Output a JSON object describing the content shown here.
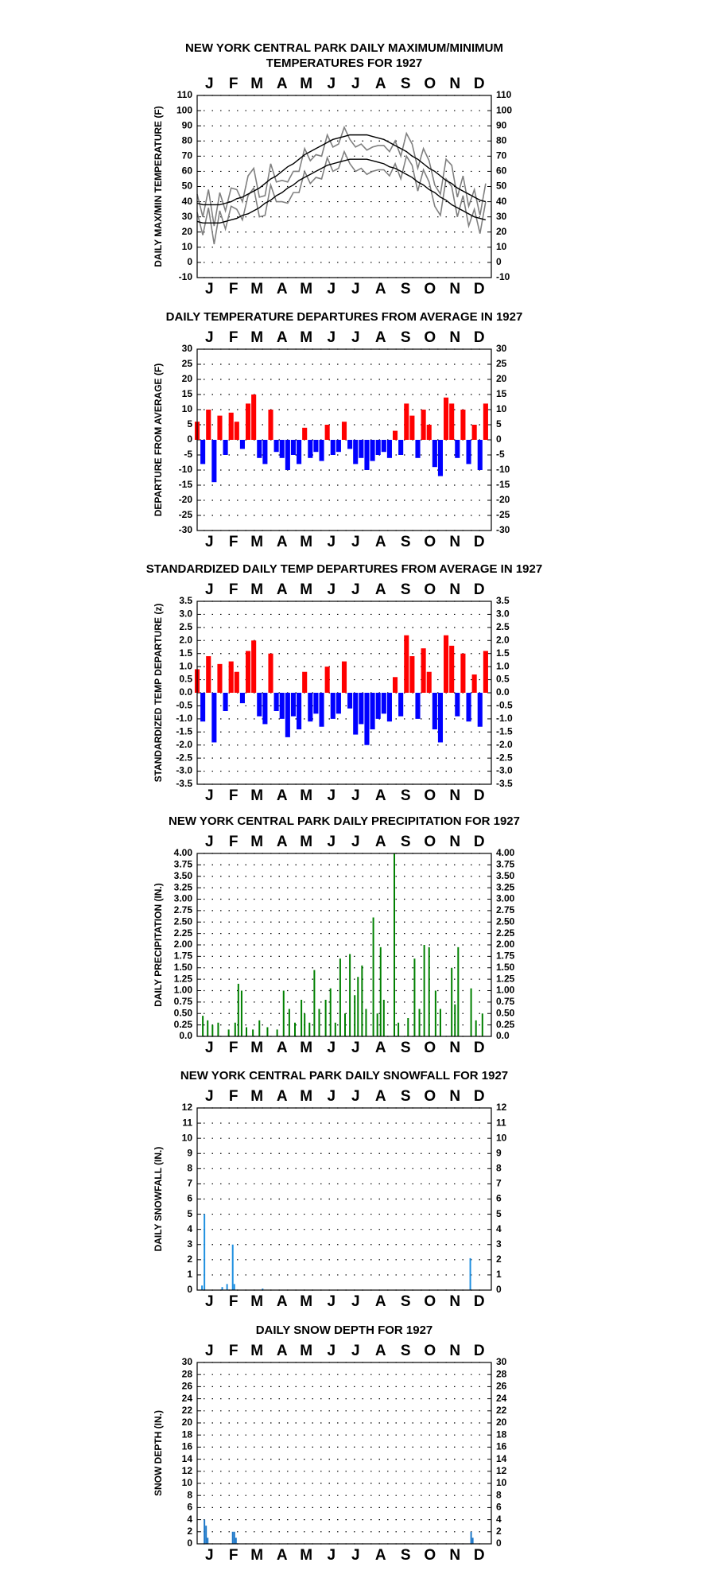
{
  "chart_data": [
    {
      "type": "line",
      "title": [
        "NEW YORK CENTRAL PARK DAILY MAXIMUM/MINIMUM",
        "TEMPERATURES FOR 1927"
      ],
      "y_label": "DAILY MAX/MIN TEMPERATURE (F)",
      "xlim": [
        1,
        365
      ],
      "xticks": [
        {
          "value": 16,
          "label": "J"
        },
        {
          "value": 46,
          "label": "F"
        },
        {
          "value": 75,
          "label": "M"
        },
        {
          "value": 106,
          "label": "A"
        },
        {
          "value": 136,
          "label": "M"
        },
        {
          "value": 167,
          "label": "J"
        },
        {
          "value": 197,
          "label": "J"
        },
        {
          "value": 228,
          "label": "A"
        },
        {
          "value": 259,
          "label": "S"
        },
        {
          "value": 289,
          "label": "O"
        },
        {
          "value": 320,
          "label": "N"
        },
        {
          "value": 350,
          "label": "D"
        }
      ],
      "ylim": [
        -10,
        110
      ],
      "yticks": [
        -10,
        0,
        10,
        20,
        30,
        40,
        50,
        60,
        70,
        80,
        90,
        100,
        110
      ],
      "grid": true,
      "x": [
        1,
        8,
        15,
        22,
        29,
        36,
        43,
        50,
        57,
        64,
        71,
        78,
        85,
        92,
        99,
        106,
        113,
        120,
        127,
        134,
        141,
        148,
        155,
        162,
        169,
        176,
        183,
        190,
        197,
        204,
        211,
        218,
        225,
        232,
        239,
        246,
        253,
        260,
        267,
        274,
        281,
        288,
        295,
        302,
        309,
        316,
        323,
        330,
        337,
        344,
        351,
        358
      ],
      "series": [
        {
          "color": "#808080",
          "values": [
            45,
            30,
            48,
            24,
            46,
            34,
            49,
            48,
            40,
            57,
            62,
            43,
            44,
            65,
            53,
            54,
            53,
            60,
            60,
            75,
            67,
            71,
            70,
            84,
            76,
            78,
            89,
            81,
            76,
            78,
            74,
            76,
            77,
            77,
            73,
            80,
            70,
            85,
            78,
            62,
            75,
            67,
            51,
            45,
            68,
            64,
            43,
            57,
            37,
            48,
            31,
            52
          ]
        },
        {
          "color": "#808080",
          "values": [
            33,
            18,
            36,
            12,
            34,
            22,
            37,
            35,
            28,
            44,
            49,
            30,
            31,
            51,
            40,
            40,
            39,
            46,
            46,
            60,
            52,
            56,
            55,
            69,
            60,
            62,
            73,
            65,
            60,
            62,
            58,
            60,
            61,
            61,
            57,
            65,
            55,
            70,
            64,
            47,
            61,
            53,
            37,
            31,
            55,
            50,
            30,
            44,
            24,
            35,
            19,
            40
          ]
        },
        {
          "color": "#000000",
          "values": [
            39,
            38,
            38,
            38,
            38,
            39,
            40,
            42,
            43,
            45,
            47,
            49,
            52,
            55,
            57,
            60,
            63,
            65,
            68,
            71,
            73,
            75,
            77,
            79,
            81,
            82,
            83,
            84,
            84,
            84,
            84,
            83,
            82,
            81,
            79,
            77,
            75,
            73,
            70,
            68,
            65,
            62,
            60,
            57,
            54,
            52,
            49,
            47,
            45,
            43,
            41,
            40
          ]
        },
        {
          "color": "#000000",
          "values": [
            27,
            26,
            26,
            26,
            26,
            27,
            28,
            29,
            31,
            32,
            34,
            36,
            39,
            41,
            44,
            46,
            49,
            51,
            54,
            56,
            58,
            60,
            62,
            64,
            65,
            66,
            67,
            68,
            68,
            68,
            68,
            67,
            66,
            65,
            63,
            62,
            60,
            58,
            56,
            53,
            51,
            48,
            46,
            43,
            41,
            38,
            36,
            34,
            32,
            30,
            29,
            28
          ]
        }
      ]
    },
    {
      "type": "bar",
      "title": [
        "DAILY TEMPERATURE DEPARTURES FROM AVERAGE IN 1927"
      ],
      "y_label": "DEPARTURE FROM AVERAGE (F)",
      "xlim": [
        1,
        365
      ],
      "xticks": [
        {
          "value": 16,
          "label": "J"
        },
        {
          "value": 46,
          "label": "F"
        },
        {
          "value": 75,
          "label": "M"
        },
        {
          "value": 106,
          "label": "A"
        },
        {
          "value": 136,
          "label": "M"
        },
        {
          "value": 167,
          "label": "J"
        },
        {
          "value": 197,
          "label": "J"
        },
        {
          "value": 228,
          "label": "A"
        },
        {
          "value": 259,
          "label": "S"
        },
        {
          "value": 289,
          "label": "O"
        },
        {
          "value": 320,
          "label": "N"
        },
        {
          "value": 350,
          "label": "D"
        }
      ],
      "ylim": [
        -30,
        30
      ],
      "yticks": [
        -30,
        -25,
        -20,
        -15,
        -10,
        -5,
        0,
        5,
        10,
        15,
        20,
        25,
        30
      ],
      "grid": true,
      "color_above": "#ff0000",
      "color_below": "#0000ff",
      "x": [
        1,
        8,
        15,
        22,
        29,
        36,
        43,
        50,
        57,
        64,
        71,
        78,
        85,
        92,
        99,
        106,
        113,
        120,
        127,
        134,
        141,
        148,
        155,
        162,
        169,
        176,
        183,
        190,
        197,
        204,
        211,
        218,
        225,
        232,
        239,
        246,
        253,
        260,
        267,
        274,
        281,
        288,
        295,
        302,
        309,
        316,
        323,
        330,
        337,
        344,
        351,
        358
      ],
      "values": [
        6,
        -8,
        10,
        -14,
        8,
        -5,
        9,
        6,
        -3,
        12,
        15,
        -6,
        -8,
        10,
        -4,
        -6,
        -10,
        -5,
        -8,
        4,
        -6,
        -4,
        -7,
        5,
        -5,
        -4,
        6,
        -3,
        -8,
        -6,
        -10,
        -7,
        -5,
        -4,
        -6,
        3,
        -5,
        12,
        8,
        -6,
        10,
        5,
        -9,
        -12,
        14,
        12,
        -6,
        10,
        -8,
        5,
        -10,
        12
      ]
    },
    {
      "type": "bar",
      "title": [
        "STANDARDIZED DAILY TEMP DEPARTURES FROM AVERAGE IN 1927"
      ],
      "y_label": "STANDARDIZED TEMP DEPARTURE (z)",
      "xlim": [
        1,
        365
      ],
      "xticks": [
        {
          "value": 16,
          "label": "J"
        },
        {
          "value": 46,
          "label": "F"
        },
        {
          "value": 75,
          "label": "M"
        },
        {
          "value": 106,
          "label": "A"
        },
        {
          "value": 136,
          "label": "M"
        },
        {
          "value": 167,
          "label": "J"
        },
        {
          "value": 197,
          "label": "J"
        },
        {
          "value": 228,
          "label": "A"
        },
        {
          "value": 259,
          "label": "S"
        },
        {
          "value": 289,
          "label": "O"
        },
        {
          "value": 320,
          "label": "N"
        },
        {
          "value": 350,
          "label": "D"
        }
      ],
      "ylim": [
        -3.5,
        3.5
      ],
      "yticks": [
        -3.5,
        {
          "value": -3,
          "label": "-3.0"
        },
        -2.5,
        {
          "value": -2,
          "label": "-2.0"
        },
        -1.5,
        {
          "value": -1,
          "label": "-1.0"
        },
        -0.5,
        {
          "value": 0,
          "label": "0.0"
        },
        0.5,
        {
          "value": 1,
          "label": "1.0"
        },
        1.5,
        {
          "value": 2,
          "label": "2.0"
        },
        2.5,
        {
          "value": 3,
          "label": "3.0"
        },
        3.5
      ],
      "grid": true,
      "color_above": "#ff0000",
      "color_below": "#0000ff",
      "x": [
        1,
        8,
        15,
        22,
        29,
        36,
        43,
        50,
        57,
        64,
        71,
        78,
        85,
        92,
        99,
        106,
        113,
        120,
        127,
        134,
        141,
        148,
        155,
        162,
        169,
        176,
        183,
        190,
        197,
        204,
        211,
        218,
        225,
        232,
        239,
        246,
        253,
        260,
        267,
        274,
        281,
        288,
        295,
        302,
        309,
        316,
        323,
        330,
        337,
        344,
        351,
        358
      ],
      "values": [
        0.9,
        -1.1,
        1.4,
        -1.9,
        1.1,
        -0.7,
        1.2,
        0.8,
        -0.4,
        1.6,
        2.0,
        -0.9,
        -1.2,
        1.5,
        -0.7,
        -1.0,
        -1.7,
        -0.9,
        -1.4,
        0.8,
        -1.1,
        -0.8,
        -1.3,
        1.0,
        -1.0,
        -0.8,
        1.2,
        -0.6,
        -1.6,
        -1.2,
        -2.0,
        -1.4,
        -1.0,
        -0.8,
        -1.1,
        0.6,
        -0.9,
        2.2,
        1.4,
        -1.0,
        1.7,
        0.8,
        -1.4,
        -1.9,
        2.2,
        1.8,
        -0.9,
        1.5,
        -1.1,
        0.7,
        -1.3,
        1.6
      ]
    },
    {
      "type": "bar",
      "title": [
        "NEW YORK CENTRAL PARK DAILY PRECIPITATION FOR 1927"
      ],
      "y_label": "DAILY PRECIPITATION (IN.)",
      "xlim": [
        1,
        365
      ],
      "xticks": [
        {
          "value": 16,
          "label": "J"
        },
        {
          "value": 46,
          "label": "F"
        },
        {
          "value": 75,
          "label": "M"
        },
        {
          "value": 106,
          "label": "A"
        },
        {
          "value": 136,
          "label": "M"
        },
        {
          "value": 167,
          "label": "J"
        },
        {
          "value": 197,
          "label": "J"
        },
        {
          "value": 228,
          "label": "A"
        },
        {
          "value": 259,
          "label": "S"
        },
        {
          "value": 289,
          "label": "O"
        },
        {
          "value": 320,
          "label": "N"
        },
        {
          "value": 350,
          "label": "D"
        }
      ],
      "ylim": [
        0,
        4
      ],
      "yticks": [
        {
          "value": 0,
          "label": "0.0"
        },
        0.25,
        {
          "value": 0.5,
          "label": "0.50"
        },
        0.75,
        {
          "value": 1,
          "label": "1.00"
        },
        1.25,
        {
          "value": 1.5,
          "label": "1.50"
        },
        1.75,
        {
          "value": 2,
          "label": "2.00"
        },
        2.25,
        {
          "value": 2.5,
          "label": "2.50"
        },
        2.75,
        {
          "value": 3,
          "label": "3.00"
        },
        3.25,
        {
          "value": 3.5,
          "label": "3.50"
        },
        3.75,
        {
          "value": 4,
          "label": "4.00"
        }
      ],
      "grid": true,
      "color": "#008000",
      "x": [
        8,
        14,
        20,
        27,
        40,
        48,
        52,
        56,
        62,
        70,
        78,
        88,
        100,
        108,
        115,
        122,
        130,
        134,
        140,
        146,
        152,
        160,
        166,
        172,
        178,
        184,
        190,
        196,
        200,
        205,
        210,
        219,
        224,
        228,
        232,
        245,
        250,
        262,
        270,
        276,
        282,
        288,
        296,
        302,
        316,
        320,
        324,
        340,
        346,
        354
      ],
      "values": [
        0.45,
        0.35,
        0.25,
        0.3,
        0.15,
        0.3,
        1.15,
        1.0,
        0.2,
        0.15,
        0.35,
        0.2,
        0.15,
        1.0,
        0.6,
        0.3,
        0.8,
        0.5,
        0.3,
        1.45,
        0.6,
        0.8,
        1.05,
        0.3,
        1.7,
        0.5,
        1.8,
        0.9,
        1.3,
        1.55,
        0.6,
        2.6,
        0.5,
        1.95,
        0.8,
        4.0,
        0.3,
        0.4,
        1.7,
        0.6,
        2.0,
        1.95,
        1.0,
        0.6,
        1.5,
        0.7,
        1.95,
        1.05,
        0.35,
        0.5
      ]
    },
    {
      "type": "bar",
      "title": [
        "NEW YORK CENTRAL PARK DAILY SNOWFALL FOR 1927"
      ],
      "y_label": "DAILY SNOWFALL (IN.)",
      "xlim": [
        1,
        365
      ],
      "xticks": [
        {
          "value": 16,
          "label": "J"
        },
        {
          "value": 46,
          "label": "F"
        },
        {
          "value": 75,
          "label": "M"
        },
        {
          "value": 106,
          "label": "A"
        },
        {
          "value": 136,
          "label": "M"
        },
        {
          "value": 167,
          "label": "J"
        },
        {
          "value": 197,
          "label": "J"
        },
        {
          "value": 228,
          "label": "A"
        },
        {
          "value": 259,
          "label": "S"
        },
        {
          "value": 289,
          "label": "O"
        },
        {
          "value": 320,
          "label": "N"
        },
        {
          "value": 350,
          "label": "D"
        }
      ],
      "ylim": [
        0,
        12
      ],
      "yticks": [
        0,
        1,
        2,
        3,
        4,
        5,
        6,
        7,
        8,
        9,
        10,
        11,
        12
      ],
      "grid": true,
      "color": "#1e8fe0",
      "x": [
        7,
        10,
        32,
        38,
        45,
        47,
        82,
        339
      ],
      "values": [
        0.3,
        5.0,
        0.2,
        0.4,
        3.0,
        0.4,
        0.1,
        2.1
      ]
    },
    {
      "type": "bar",
      "title": [
        "DAILY SNOW DEPTH FOR 1927"
      ],
      "y_label": "SNOW DEPTH (IN.)",
      "xlim": [
        1,
        365
      ],
      "xticks": [
        {
          "value": 16,
          "label": "J"
        },
        {
          "value": 46,
          "label": "F"
        },
        {
          "value": 75,
          "label": "M"
        },
        {
          "value": 106,
          "label": "A"
        },
        {
          "value": 136,
          "label": "M"
        },
        {
          "value": 167,
          "label": "J"
        },
        {
          "value": 197,
          "label": "J"
        },
        {
          "value": 228,
          "label": "A"
        },
        {
          "value": 259,
          "label": "S"
        },
        {
          "value": 289,
          "label": "O"
        },
        {
          "value": 320,
          "label": "N"
        },
        {
          "value": 350,
          "label": "D"
        }
      ],
      "ylim": [
        0,
        30
      ],
      "yticks": [
        0,
        2,
        4,
        6,
        8,
        10,
        12,
        14,
        16,
        18,
        20,
        22,
        24,
        26,
        28,
        30
      ],
      "grid": true,
      "color": "#1e78c8",
      "x": [
        10,
        12,
        14,
        45,
        47,
        49,
        340,
        342
      ],
      "values": [
        4,
        3,
        1,
        2,
        2,
        1,
        2,
        1
      ]
    }
  ]
}
